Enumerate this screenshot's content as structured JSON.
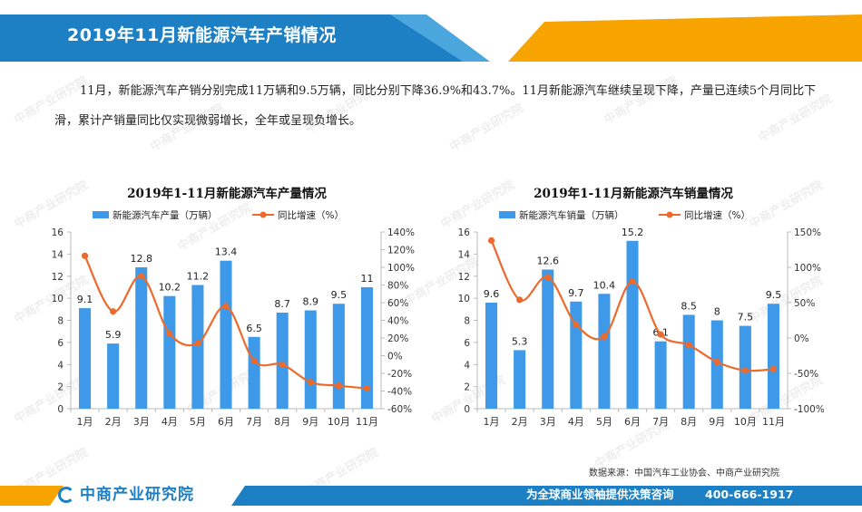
{
  "header": {
    "title": "2019年11月新能源汽车产销情况"
  },
  "intro": "11月，新能源汽车产销分别完成11万辆和9.5万辆，同比分别下降36.9%和43.7%。11月新能源汽车继续呈现下降，产量已连续5个月同比下滑，累计产销量同比仅实现微弱增长，全年或呈现负增长。",
  "watermark": "中商产业研究院",
  "colors": {
    "bar": "#3e9ae8",
    "line": "#ec6a2c",
    "header_blue": "#1d7fc4",
    "header_orange": "#f7a300"
  },
  "chart_data": [
    {
      "type": "bar",
      "title": "2019年1-11月新能源汽车产量情况",
      "categories": [
        "1月",
        "2月",
        "3月",
        "4月",
        "5月",
        "6月",
        "7月",
        "8月",
        "9月",
        "10月",
        "11月"
      ],
      "series": [
        {
          "name": "新能源汽车产量（万辆）",
          "type": "bar",
          "axis": "left",
          "values": [
            9.1,
            5.9,
            12.8,
            10.2,
            11.2,
            13.4,
            6.5,
            8.7,
            8.9,
            9.5,
            11
          ]
        },
        {
          "name": "同比增速（%）",
          "type": "line",
          "axis": "right",
          "values": [
            113,
            50,
            90,
            25,
            14,
            56,
            -6,
            -10,
            -30,
            -34,
            -37
          ]
        }
      ],
      "yleft": {
        "min": 0,
        "max": 16,
        "ticks": [
          0,
          2,
          4,
          6,
          8,
          10,
          12,
          14,
          16
        ]
      },
      "yright": {
        "min": -60,
        "max": 140,
        "ticks": [
          -60,
          -40,
          -20,
          0,
          20,
          40,
          60,
          80,
          100,
          120,
          140
        ],
        "suffix": "%"
      },
      "legend": "top"
    },
    {
      "type": "bar",
      "title": "2019年1-11月新能源汽车销量情况",
      "categories": [
        "1月",
        "2月",
        "3月",
        "4月",
        "5月",
        "6月",
        "7月",
        "8月",
        "9月",
        "10月",
        "11月"
      ],
      "series": [
        {
          "name": "新能源汽车销量（万辆）",
          "type": "bar",
          "axis": "left",
          "values": [
            9.6,
            5.3,
            12.6,
            9.7,
            10.4,
            15.2,
            6.1,
            8.5,
            8,
            7.5,
            9.5
          ]
        },
        {
          "name": "同比增速（%）",
          "type": "line",
          "axis": "right",
          "values": [
            138,
            54,
            86,
            19,
            2,
            80,
            5,
            -10,
            -34,
            -46,
            -44
          ]
        }
      ],
      "yleft": {
        "min": 0,
        "max": 16,
        "ticks": [
          0,
          2,
          4,
          6,
          8,
          10,
          12,
          14,
          16
        ]
      },
      "yright": {
        "min": -100,
        "max": 150,
        "ticks": [
          -100,
          -50,
          0,
          50,
          100,
          150
        ],
        "suffix": "%"
      },
      "legend": "top"
    }
  ],
  "source": "数据来源：中国汽车工业协会、中商产业研究院",
  "footer": {
    "brand": "中商产业研究院",
    "slogan": "为全球商业领袖提供决策咨询",
    "hotline": "400-666-1917"
  }
}
